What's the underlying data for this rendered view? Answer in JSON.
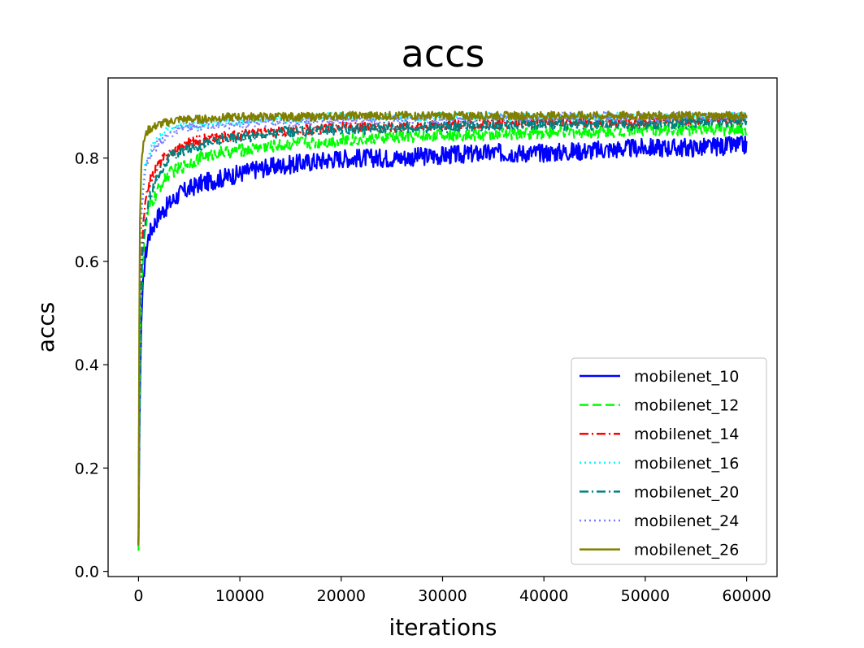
{
  "chart_data": {
    "type": "line",
    "title": "accs",
    "xlabel": "iterations",
    "ylabel": "accs",
    "xlim": [
      -3000,
      63000
    ],
    "ylim": [
      -0.01,
      0.955
    ],
    "xticks": [
      0,
      10000,
      20000,
      30000,
      40000,
      50000,
      60000
    ],
    "xtick_labels": [
      "0",
      "10000",
      "20000",
      "30000",
      "40000",
      "50000",
      "60000"
    ],
    "yticks": [
      0.0,
      0.2,
      0.4,
      0.6,
      0.8
    ],
    "ytick_labels": [
      "0.0",
      "0.2",
      "0.4",
      "0.6",
      "0.8"
    ],
    "grid": false,
    "legend_position": "lower-right",
    "series": [
      {
        "name": "mobilenet_10",
        "color": "#0000ff",
        "linestyle": "solid",
        "x": [
          0,
          100,
          300,
          600,
          1000,
          2000,
          3000,
          4000,
          5000,
          6000,
          8000,
          10000,
          12000,
          14000,
          16000,
          18000,
          20000,
          25000,
          30000,
          35000,
          40000,
          45000,
          50000,
          55000,
          60000
        ],
        "values": [
          0.05,
          0.3,
          0.5,
          0.6,
          0.65,
          0.69,
          0.71,
          0.73,
          0.74,
          0.75,
          0.76,
          0.77,
          0.78,
          0.785,
          0.79,
          0.795,
          0.8,
          0.8,
          0.805,
          0.81,
          0.81,
          0.815,
          0.82,
          0.82,
          0.825
        ]
      },
      {
        "name": "mobilenet_12",
        "color": "#00ff00",
        "linestyle": "dashed",
        "x": [
          0,
          100,
          300,
          600,
          1000,
          2000,
          3000,
          4000,
          5000,
          6000,
          8000,
          10000,
          12000,
          14000,
          16000,
          18000,
          20000,
          25000,
          30000,
          35000,
          40000,
          45000,
          50000,
          55000,
          60000
        ],
        "values": [
          0.04,
          0.35,
          0.55,
          0.65,
          0.7,
          0.74,
          0.77,
          0.78,
          0.79,
          0.8,
          0.81,
          0.815,
          0.82,
          0.825,
          0.83,
          0.83,
          0.835,
          0.84,
          0.845,
          0.845,
          0.85,
          0.85,
          0.855,
          0.855,
          0.855
        ]
      },
      {
        "name": "mobilenet_14",
        "color": "#ff0000",
        "linestyle": "dashdot",
        "x": [
          0,
          100,
          300,
          600,
          1000,
          2000,
          3000,
          4000,
          5000,
          6000,
          8000,
          10000,
          12000,
          14000,
          16000,
          18000,
          20000,
          25000,
          30000,
          35000,
          40000,
          45000,
          50000,
          55000,
          60000
        ],
        "values": [
          0.05,
          0.45,
          0.62,
          0.7,
          0.75,
          0.79,
          0.81,
          0.82,
          0.83,
          0.835,
          0.84,
          0.845,
          0.85,
          0.85,
          0.855,
          0.855,
          0.86,
          0.86,
          0.865,
          0.865,
          0.87,
          0.87,
          0.87,
          0.875,
          0.875
        ]
      },
      {
        "name": "mobilenet_16",
        "color": "#00ffff",
        "linestyle": "dotted",
        "x": [
          0,
          100,
          300,
          600,
          1000,
          2000,
          3000,
          4000,
          5000,
          6000,
          8000,
          10000,
          12000,
          14000,
          16000,
          18000,
          20000,
          25000,
          30000,
          35000,
          40000,
          45000,
          50000,
          55000,
          60000
        ],
        "values": [
          0.05,
          0.5,
          0.7,
          0.78,
          0.81,
          0.84,
          0.855,
          0.86,
          0.865,
          0.865,
          0.87,
          0.87,
          0.875,
          0.875,
          0.875,
          0.88,
          0.88,
          0.88,
          0.88,
          0.88,
          0.88,
          0.88,
          0.88,
          0.88,
          0.88
        ]
      },
      {
        "name": "mobilenet_20",
        "color": "#008080",
        "linestyle": "dashdot",
        "x": [
          0,
          100,
          300,
          600,
          1000,
          2000,
          3000,
          4000,
          5000,
          6000,
          8000,
          10000,
          12000,
          14000,
          16000,
          18000,
          20000,
          25000,
          30000,
          35000,
          40000,
          45000,
          50000,
          55000,
          60000
        ],
        "values": [
          0.05,
          0.4,
          0.58,
          0.66,
          0.72,
          0.77,
          0.8,
          0.81,
          0.82,
          0.825,
          0.835,
          0.84,
          0.845,
          0.85,
          0.85,
          0.855,
          0.855,
          0.86,
          0.86,
          0.865,
          0.865,
          0.865,
          0.865,
          0.87,
          0.87
        ]
      },
      {
        "name": "mobilenet_24",
        "color": "#7b7bff",
        "linestyle": "dotted",
        "x": [
          0,
          100,
          300,
          600,
          1000,
          2000,
          3000,
          4000,
          5000,
          6000,
          8000,
          10000,
          12000,
          14000,
          16000,
          18000,
          20000,
          25000,
          30000,
          35000,
          40000,
          45000,
          50000,
          55000,
          60000
        ],
        "values": [
          0.05,
          0.5,
          0.7,
          0.77,
          0.8,
          0.83,
          0.845,
          0.855,
          0.86,
          0.86,
          0.865,
          0.865,
          0.87,
          0.87,
          0.87,
          0.875,
          0.875,
          0.875,
          0.875,
          0.88,
          0.88,
          0.88,
          0.88,
          0.88,
          0.88
        ]
      },
      {
        "name": "mobilenet_26",
        "color": "#808000",
        "linestyle": "solid",
        "x": [
          0,
          100,
          300,
          600,
          1000,
          2000,
          3000,
          4000,
          5000,
          6000,
          8000,
          10000,
          12000,
          14000,
          16000,
          18000,
          20000,
          25000,
          30000,
          35000,
          40000,
          45000,
          50000,
          55000,
          60000
        ],
        "values": [
          0.05,
          0.65,
          0.8,
          0.84,
          0.855,
          0.865,
          0.87,
          0.875,
          0.875,
          0.875,
          0.878,
          0.88,
          0.88,
          0.88,
          0.88,
          0.88,
          0.882,
          0.882,
          0.882,
          0.882,
          0.882,
          0.882,
          0.882,
          0.882,
          0.882
        ]
      }
    ]
  }
}
